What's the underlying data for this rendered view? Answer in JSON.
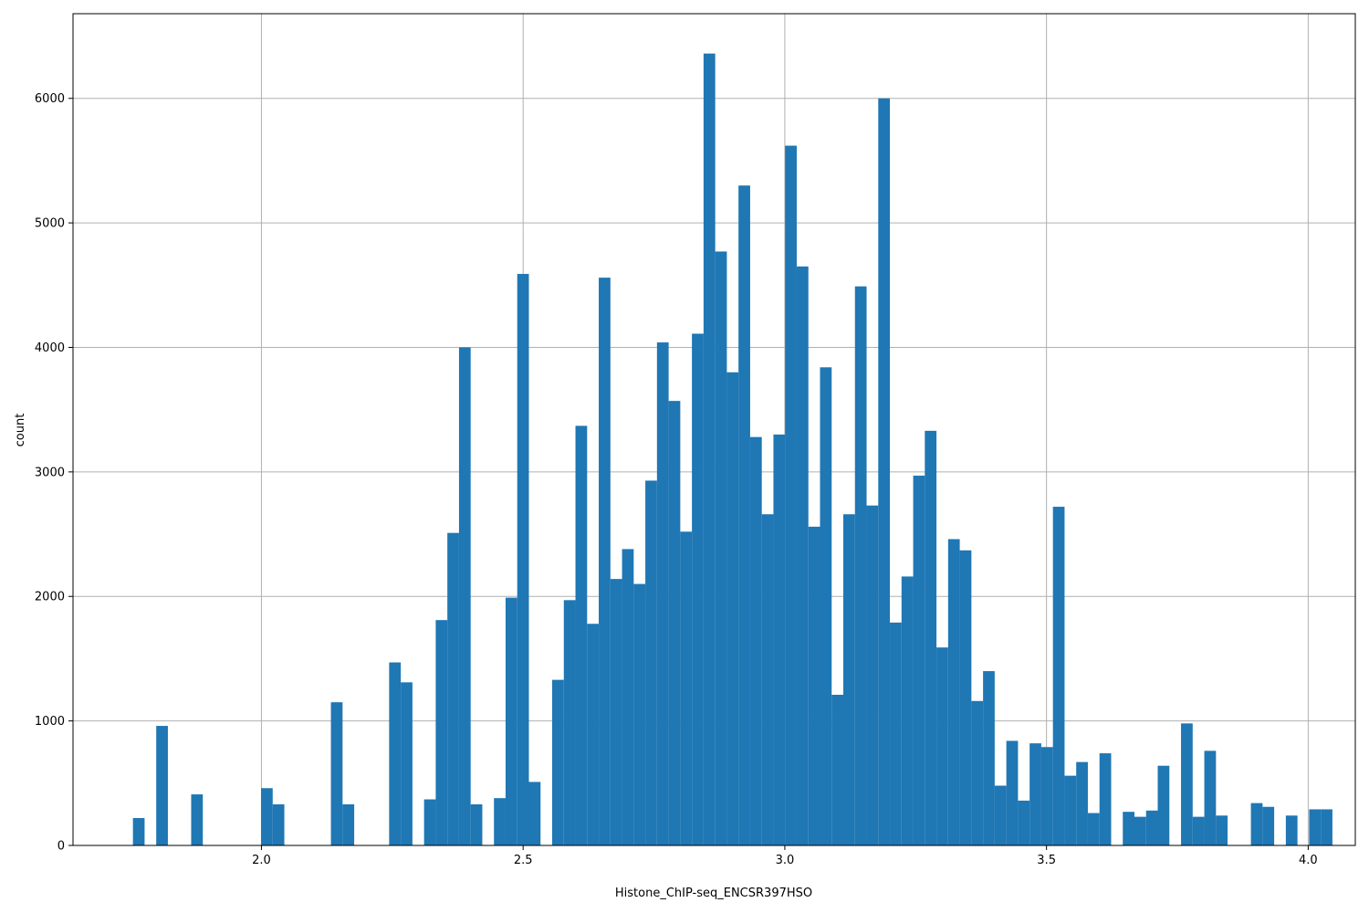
{
  "chart_data": {
    "type": "bar",
    "subtype": "histogram",
    "title": "",
    "xlabel": "Histone_ChIP-seq_ENCSR397HSO",
    "ylabel": "count",
    "xlim": [
      1.64,
      4.09
    ],
    "ylim": [
      0,
      6680
    ],
    "xticks": [
      2.0,
      2.5,
      3.0,
      3.5,
      4.0
    ],
    "xtick_labels": [
      "2.0",
      "2.5",
      "3.0",
      "3.5",
      "4.0"
    ],
    "yticks": [
      0,
      1000,
      2000,
      3000,
      4000,
      5000,
      6000
    ],
    "ytick_labels": [
      "0",
      "1000",
      "2000",
      "3000",
      "4000",
      "5000",
      "6000"
    ],
    "grid": true,
    "bar_color": "#1f77b4",
    "bin_start": 1.7545,
    "bin_width": 0.02225,
    "counts": [
      220,
      0,
      960,
      0,
      0,
      410,
      0,
      0,
      0,
      0,
      0,
      460,
      330,
      0,
      0,
      0,
      0,
      1150,
      330,
      0,
      0,
      0,
      1470,
      1310,
      0,
      370,
      1810,
      2510,
      4000,
      330,
      0,
      380,
      1990,
      4590,
      510,
      0,
      1330,
      1970,
      3370,
      1780,
      4560,
      2140,
      2380,
      2100,
      2930,
      4040,
      3570,
      2520,
      4110,
      6360,
      4770,
      3800,
      5300,
      3280,
      2660,
      3300,
      5620,
      4650,
      2560,
      3840,
      1210,
      2660,
      4490,
      2730,
      6000,
      1790,
      2160,
      2970,
      3330,
      1590,
      2460,
      2370,
      1160,
      1400,
      480,
      840,
      360,
      820,
      790,
      2720,
      560,
      670,
      260,
      740,
      0,
      270,
      230,
      280,
      640,
      0,
      980,
      230,
      760,
      240,
      0,
      0,
      340,
      310,
      0,
      240,
      0,
      290,
      290
    ]
  }
}
